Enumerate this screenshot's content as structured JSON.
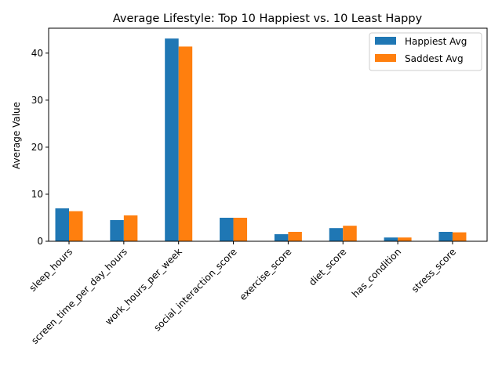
{
  "chart_data": {
    "type": "bar",
    "title": "Average Lifestyle: Top 10 Happiest vs. 10 Least Happy",
    "xlabel": "",
    "ylabel": "Average Value",
    "categories": [
      "sleep_hours",
      "screen_time_per_day_hours",
      "work_hours_per_week",
      "social_interaction_score",
      "exercise_score",
      "diet_score",
      "has_condition",
      "stress_score"
    ],
    "series": [
      {
        "name": "Happiest Avg",
        "color": "#1f77b4",
        "values": [
          7.0,
          4.5,
          43.1,
          5.0,
          1.5,
          2.8,
          0.8,
          2.0
        ]
      },
      {
        "name": "Saddest Avg",
        "color": "#ff7f0e",
        "values": [
          6.4,
          5.5,
          41.4,
          5.0,
          2.0,
          3.3,
          0.8,
          1.9
        ]
      }
    ],
    "ylim": [
      0,
      45.3
    ],
    "yticks": [
      0,
      10,
      20,
      30,
      40
    ],
    "grid": false,
    "legend": "top-right"
  }
}
